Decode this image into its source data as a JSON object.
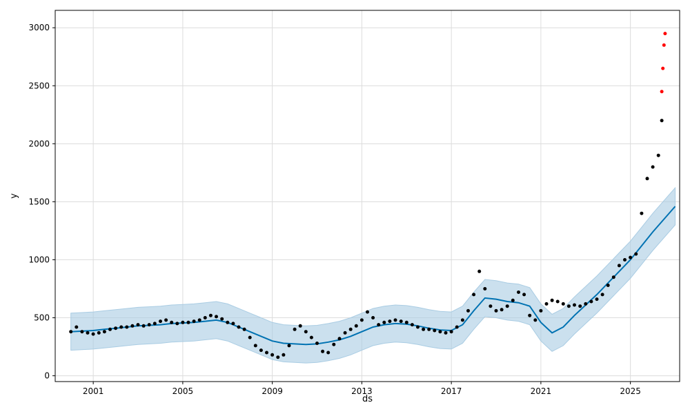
{
  "chart_data": {
    "type": "scatter",
    "title": "",
    "xlabel": "ds",
    "ylabel": "y",
    "x_type": "time",
    "xlim": [
      1999.3,
      2027.2
    ],
    "ylim": [
      -50,
      3150
    ],
    "x_ticks": [
      2001,
      2005,
      2009,
      2013,
      2017,
      2021,
      2025
    ],
    "x_tick_labels": [
      "2001",
      "2005",
      "2009",
      "2013",
      "2017",
      "2021",
      "2025"
    ],
    "y_ticks": [
      0,
      500,
      1000,
      1500,
      2000,
      2500,
      3000
    ],
    "y_tick_labels": [
      "0",
      "500",
      "1000",
      "1500",
      "2000",
      "2500",
      "3000"
    ],
    "grid": true,
    "colors": {
      "actual": "#000000",
      "highlight": "#ff0000",
      "forecast": "#0072b2",
      "band": "#a9cce3"
    },
    "series": [
      {
        "role": "forecast",
        "x": [
          2000.0,
          2000.5,
          2001.0,
          2001.5,
          2002.0,
          2002.5,
          2003.0,
          2003.5,
          2004.0,
          2004.5,
          2005.0,
          2005.5,
          2006.0,
          2006.5,
          2007.0,
          2007.5,
          2008.0,
          2008.5,
          2009.0,
          2009.5,
          2010.0,
          2010.5,
          2011.0,
          2011.5,
          2012.0,
          2012.5,
          2013.0,
          2013.5,
          2014.0,
          2014.5,
          2015.0,
          2015.5,
          2016.0,
          2016.5,
          2017.0,
          2017.5,
          2018.0,
          2018.5,
          2019.0,
          2019.5,
          2020.0,
          2020.5,
          2021.0,
          2021.5,
          2022.0,
          2022.5,
          2023.0,
          2023.5,
          2024.0,
          2024.5,
          2025.0,
          2025.5,
          2026.0,
          2026.5,
          2027.0
        ],
        "y": [
          380,
          385,
          390,
          400,
          410,
          420,
          430,
          435,
          440,
          450,
          455,
          460,
          470,
          480,
          460,
          420,
          380,
          340,
          300,
          280,
          275,
          270,
          275,
          290,
          310,
          340,
          380,
          420,
          440,
          450,
          445,
          430,
          410,
          395,
          390,
          440,
          560,
          670,
          660,
          640,
          630,
          600,
          460,
          370,
          420,
          520,
          610,
          700,
          800,
          900,
          1000,
          1120,
          1240,
          1350,
          1460
        ]
      },
      {
        "role": "uncertainty_band",
        "x": [
          2000.0,
          2000.5,
          2001.0,
          2001.5,
          2002.0,
          2002.5,
          2003.0,
          2003.5,
          2004.0,
          2004.5,
          2005.0,
          2005.5,
          2006.0,
          2006.5,
          2007.0,
          2007.5,
          2008.0,
          2008.5,
          2009.0,
          2009.5,
          2010.0,
          2010.5,
          2011.0,
          2011.5,
          2012.0,
          2012.5,
          2013.0,
          2013.5,
          2014.0,
          2014.5,
          2015.0,
          2015.5,
          2016.0,
          2016.5,
          2017.0,
          2017.5,
          2018.0,
          2018.5,
          2019.0,
          2019.5,
          2020.0,
          2020.5,
          2021.0,
          2021.5,
          2022.0,
          2022.5,
          2023.0,
          2023.5,
          2024.0,
          2024.5,
          2025.0,
          2025.5,
          2026.0,
          2026.5,
          2027.0
        ],
        "upper": [
          540,
          545,
          550,
          560,
          570,
          580,
          590,
          595,
          600,
          610,
          615,
          620,
          630,
          640,
          620,
          580,
          540,
          500,
          460,
          440,
          435,
          430,
          435,
          450,
          470,
          500,
          540,
          580,
          600,
          610,
          605,
          590,
          570,
          555,
          550,
          600,
          720,
          830,
          820,
          800,
          790,
          760,
          620,
          530,
          580,
          680,
          770,
          860,
          960,
          1060,
          1160,
          1280,
          1400,
          1510,
          1620
        ],
        "lower": [
          220,
          225,
          230,
          240,
          250,
          260,
          270,
          275,
          280,
          290,
          295,
          300,
          310,
          320,
          300,
          260,
          220,
          180,
          140,
          120,
          115,
          110,
          115,
          130,
          150,
          180,
          220,
          260,
          280,
          290,
          285,
          270,
          250,
          235,
          230,
          280,
          400,
          510,
          500,
          480,
          470,
          440,
          300,
          210,
          260,
          360,
          450,
          540,
          640,
          740,
          840,
          960,
          1080,
          1190,
          1300
        ]
      },
      {
        "role": "actual",
        "x": [
          2000.0,
          2000.25,
          2000.5,
          2000.75,
          2001.0,
          2001.25,
          2001.5,
          2001.75,
          2002.0,
          2002.25,
          2002.5,
          2002.75,
          2003.0,
          2003.25,
          2003.5,
          2003.75,
          2004.0,
          2004.25,
          2004.5,
          2004.75,
          2005.0,
          2005.25,
          2005.5,
          2005.75,
          2006.0,
          2006.25,
          2006.5,
          2006.75,
          2007.0,
          2007.25,
          2007.5,
          2007.75,
          2008.0,
          2008.25,
          2008.5,
          2008.75,
          2009.0,
          2009.25,
          2009.5,
          2009.75,
          2010.0,
          2010.25,
          2010.5,
          2010.75,
          2011.0,
          2011.25,
          2011.5,
          2011.75,
          2012.0,
          2012.25,
          2012.5,
          2012.75,
          2013.0,
          2013.25,
          2013.5,
          2013.75,
          2014.0,
          2014.25,
          2014.5,
          2014.75,
          2015.0,
          2015.25,
          2015.5,
          2015.75,
          2016.0,
          2016.25,
          2016.5,
          2016.75,
          2017.0,
          2017.25,
          2017.5,
          2017.75,
          2018.0,
          2018.25,
          2018.5,
          2018.75,
          2019.0,
          2019.25,
          2019.5,
          2019.75,
          2020.0,
          2020.25,
          2020.5,
          2020.75,
          2021.0,
          2021.25,
          2021.5,
          2021.75,
          2022.0,
          2022.25,
          2022.5,
          2022.75,
          2023.0,
          2023.25,
          2023.5,
          2023.75,
          2024.0,
          2024.25,
          2024.5,
          2024.75,
          2025.0,
          2025.25,
          2025.5,
          2025.75,
          2026.0,
          2026.25,
          2026.4
        ],
        "y": [
          380,
          420,
          380,
          370,
          360,
          370,
          380,
          400,
          410,
          420,
          420,
          430,
          440,
          430,
          440,
          450,
          470,
          480,
          460,
          450,
          460,
          460,
          470,
          480,
          500,
          520,
          510,
          490,
          460,
          450,
          420,
          400,
          330,
          260,
          220,
          200,
          180,
          160,
          180,
          260,
          400,
          430,
          380,
          330,
          280,
          210,
          200,
          270,
          320,
          370,
          400,
          430,
          480,
          550,
          500,
          440,
          460,
          470,
          480,
          470,
          460,
          440,
          420,
          400,
          400,
          390,
          380,
          370,
          380,
          420,
          480,
          560,
          700,
          900,
          750,
          600,
          560,
          570,
          600,
          650,
          720,
          700,
          520,
          480,
          560,
          620,
          650,
          640,
          620,
          600,
          610,
          600,
          620,
          640,
          660,
          700,
          780,
          850,
          950,
          1000,
          1020,
          1050,
          1400,
          1700,
          1800,
          1900,
          2200
        ]
      },
      {
        "role": "actual_recent",
        "x": [
          2026.4,
          2026.45,
          2026.5,
          2026.55
        ],
        "y": [
          2450,
          2650,
          2850,
          2950
        ]
      }
    ]
  }
}
